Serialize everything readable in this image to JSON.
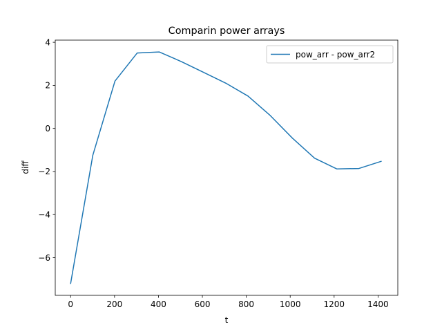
{
  "chart_data": {
    "type": "line",
    "title": "Comparin power arrays",
    "xlabel": "t",
    "ylabel": "diff",
    "xlim": [
      -70,
      1490
    ],
    "ylim": [
      -7.75,
      4.1
    ],
    "xticks": [
      0,
      200,
      400,
      600,
      800,
      1000,
      1200,
      1400
    ],
    "yticks": [
      -6,
      -4,
      -2,
      0,
      2,
      4
    ],
    "grid": false,
    "legend_position": "upper-right",
    "series": [
      {
        "name": "pow_arr - pow_arr2",
        "color": "#1f77b4",
        "x": [
          0,
          101,
          202,
          303,
          404,
          505,
          606,
          707,
          808,
          909,
          1010,
          1111,
          1212,
          1313,
          1414
        ],
        "y": [
          -7.2,
          -1.25,
          2.2,
          3.5,
          3.55,
          3.1,
          2.6,
          2.1,
          1.5,
          0.6,
          -0.45,
          -1.38,
          -1.88,
          -1.86,
          -1.53
        ]
      }
    ]
  }
}
